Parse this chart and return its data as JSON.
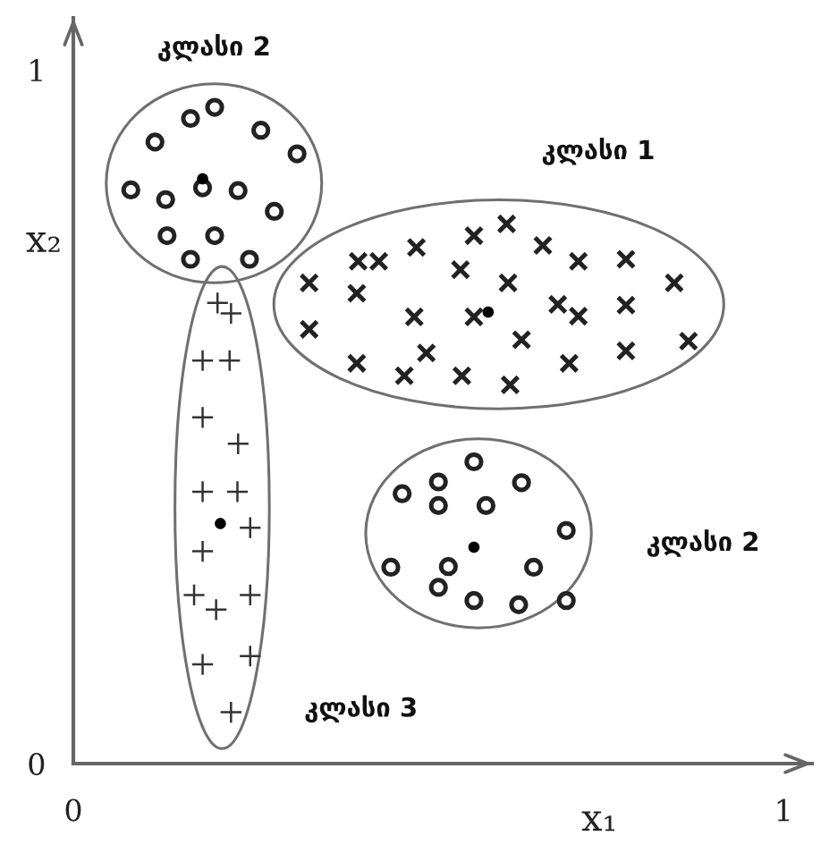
{
  "chart_data": {
    "type": "scatter",
    "xlabel": "x₁",
    "ylabel": "x₂",
    "xlim": [
      0,
      1.04
    ],
    "ylim": [
      0,
      1.075
    ],
    "xticks": [
      0,
      1
    ],
    "yticks": [
      0,
      1
    ],
    "series": [
      {
        "name": "კლასი 2",
        "color": "#222222",
        "marker": "circle",
        "x": [
          0.165,
          0.199,
          0.115,
          0.264,
          0.315,
          0.081,
          0.13,
          0.182,
          0.232,
          0.283,
          0.132,
          0.199,
          0.165,
          0.248
        ],
        "values": [
          0.93,
          0.946,
          0.896,
          0.913,
          0.879,
          0.827,
          0.813,
          0.83,
          0.826,
          0.796,
          0.761,
          0.761,
          0.727,
          0.727
        ]
      },
      {
        "name": "კლასი 1",
        "color": "#222222",
        "marker": "cross",
        "x": [
          0.61,
          0.564,
          0.661,
          0.483,
          0.401,
          0.43,
          0.711,
          0.778,
          0.545,
          0.332,
          0.399,
          0.612,
          0.846,
          0.682,
          0.711,
          0.778,
          0.332,
          0.48,
          0.564,
          0.631,
          0.399,
          0.466,
          0.497,
          0.547,
          0.615,
          0.698,
          0.778,
          0.866
        ],
        "values": [
          0.778,
          0.761,
          0.747,
          0.744,
          0.724,
          0.724,
          0.724,
          0.727,
          0.712,
          0.693,
          0.678,
          0.693,
          0.693,
          0.662,
          0.645,
          0.661,
          0.626,
          0.644,
          0.644,
          0.611,
          0.577,
          0.559,
          0.592,
          0.559,
          0.546,
          0.577,
          0.595,
          0.609
        ]
      },
      {
        "name": "კლასი 3",
        "color": "#333333",
        "marker": "plus",
        "x": [
          0.203,
          0.222,
          0.182,
          0.22,
          0.182,
          0.232,
          0.182,
          0.231,
          0.249,
          0.182,
          0.17,
          0.201,
          0.249,
          0.249,
          0.182,
          0.222
        ],
        "values": [
          0.664,
          0.649,
          0.581,
          0.581,
          0.499,
          0.461,
          0.392,
          0.392,
          0.34,
          0.306,
          0.243,
          0.222,
          0.243,
          0.155,
          0.143,
          0.074
        ]
      },
      {
        "name": "კლასი 2",
        "color": "#222222",
        "marker": "circle",
        "x": [
          0.564,
          0.463,
          0.514,
          0.514,
          0.631,
          0.581,
          0.694,
          0.447,
          0.528,
          0.648,
          0.514,
          0.564,
          0.627,
          0.694
        ],
        "values": [
          0.435,
          0.389,
          0.406,
          0.372,
          0.405,
          0.372,
          0.336,
          0.283,
          0.284,
          0.283,
          0.254,
          0.235,
          0.229,
          0.235
        ]
      },
      {
        "color": "#000000",
        "marker": "circle",
        "x": [
          0.182,
          0.584,
          0.207,
          0.564
        ],
        "values": [
          0.843,
          0.651,
          0.346,
          0.312
        ]
      }
    ]
  }
}
